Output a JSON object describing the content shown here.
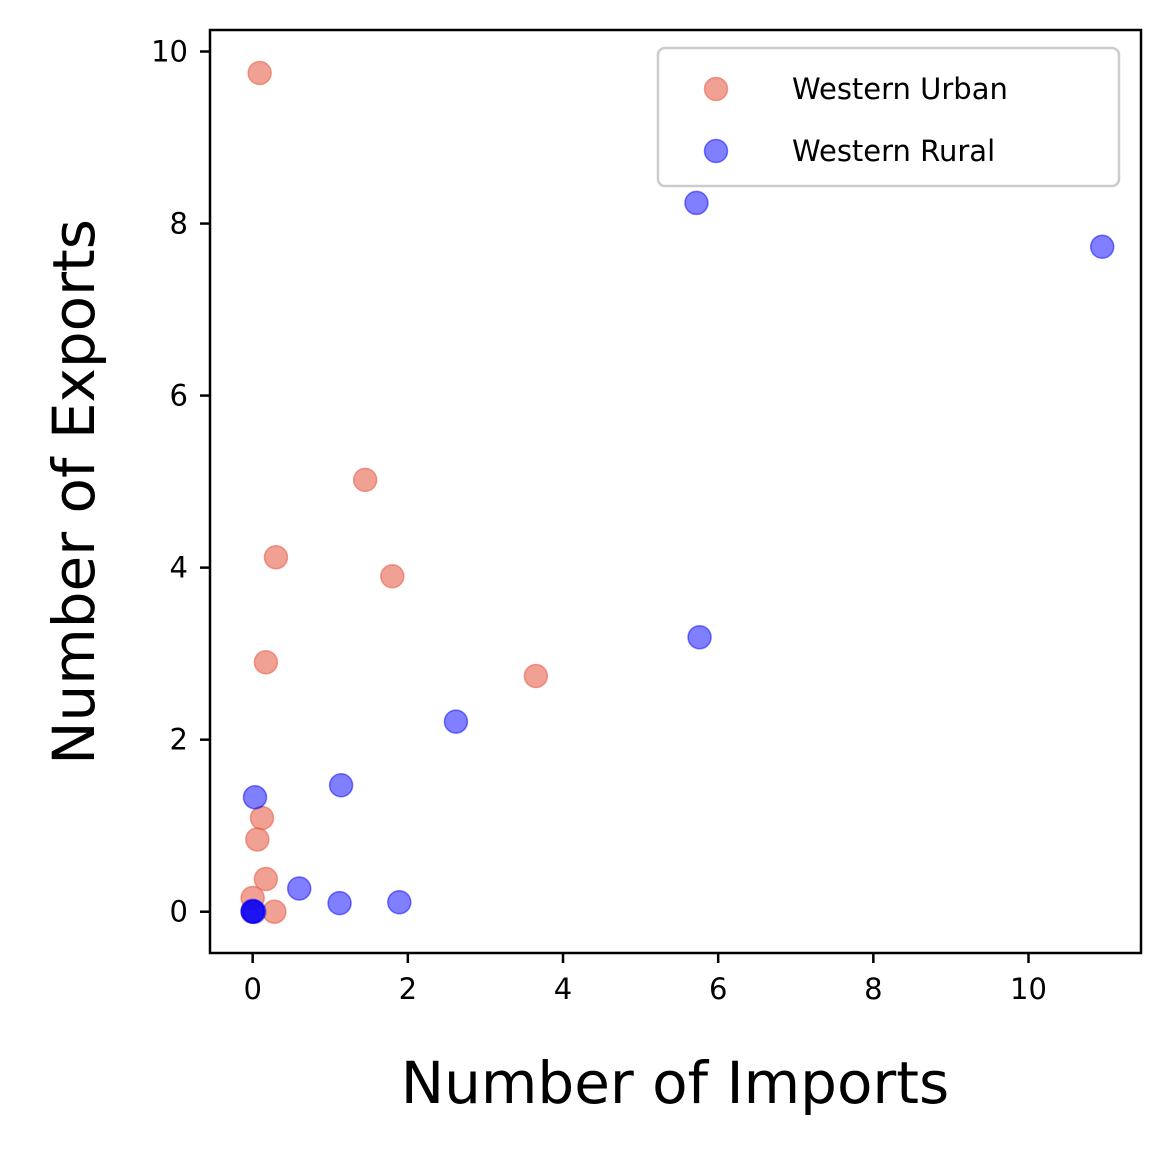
{
  "chart_data": {
    "type": "scatter",
    "title": "",
    "xlabel": "Number of Imports",
    "ylabel": "Number of Exports",
    "xlim": [
      -0.55,
      11.45
    ],
    "ylim": [
      -0.48,
      10.25
    ],
    "xticks": [
      0,
      2,
      4,
      6,
      8,
      10
    ],
    "yticks": [
      0,
      2,
      4,
      6,
      8,
      10
    ],
    "grid": false,
    "legend": "top-right",
    "series": [
      {
        "name": "Western Urban",
        "color": "#e8604c",
        "alpha": 0.6,
        "points": [
          {
            "x": 0.09,
            "y": 9.75
          },
          {
            "x": 1.45,
            "y": 5.02
          },
          {
            "x": 0.3,
            "y": 4.12
          },
          {
            "x": 1.8,
            "y": 3.9
          },
          {
            "x": 0.17,
            "y": 2.9
          },
          {
            "x": 3.65,
            "y": 2.74
          },
          {
            "x": 0.12,
            "y": 1.09
          },
          {
            "x": 0.06,
            "y": 0.84
          },
          {
            "x": 0.17,
            "y": 0.38
          },
          {
            "x": 0.0,
            "y": 0.16
          },
          {
            "x": 0.28,
            "y": 0.0
          },
          {
            "x": 0.0,
            "y": 0.0
          }
        ]
      },
      {
        "name": "Western Rural",
        "color": "#0000ff",
        "alpha": 0.5,
        "points": [
          {
            "x": 5.72,
            "y": 8.24
          },
          {
            "x": 10.95,
            "y": 7.73
          },
          {
            "x": 5.76,
            "y": 3.19
          },
          {
            "x": 2.62,
            "y": 2.21
          },
          {
            "x": 1.14,
            "y": 1.47
          },
          {
            "x": 0.03,
            "y": 1.33
          },
          {
            "x": 0.6,
            "y": 0.27
          },
          {
            "x": 1.12,
            "y": 0.1
          },
          {
            "x": 1.89,
            "y": 0.11
          },
          {
            "x": 0.0,
            "y": 0.0
          },
          {
            "x": 0.02,
            "y": 0.0
          },
          {
            "x": 0.0,
            "y": 0.01
          }
        ]
      }
    ]
  }
}
